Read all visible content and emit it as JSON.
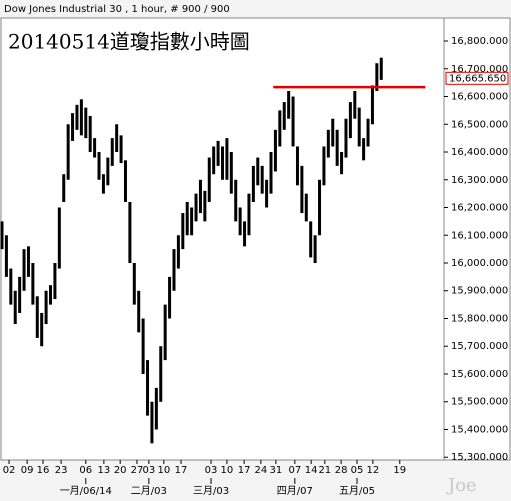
{
  "chart_data": {
    "type": "hlbar",
    "header": "Dow Jones Industrial 30 , 1 hour, # 900 / 900",
    "title": "20140514道瓊指數小時圖",
    "watermark": "Joe",
    "color": "#000000",
    "x": [
      0,
      1,
      2,
      3,
      4,
      5,
      6,
      7,
      8,
      9,
      10,
      11,
      12,
      13,
      14,
      15,
      16,
      17,
      18,
      19,
      20,
      21,
      22,
      23,
      24,
      25,
      26,
      27,
      28,
      29,
      30,
      31,
      32,
      33,
      34,
      35,
      36,
      37,
      38,
      39,
      40,
      41,
      42,
      43,
      44,
      45,
      46,
      47,
      48,
      49,
      50,
      51,
      52,
      53,
      54,
      55,
      56,
      57,
      58,
      59,
      60,
      61,
      62,
      63,
      64,
      65,
      66,
      67,
      68,
      69,
      70,
      71,
      72,
      73,
      74,
      75,
      76,
      77,
      78,
      79,
      80,
      81,
      82,
      83,
      84,
      85,
      86
    ],
    "high": [
      16150,
      16100,
      15980,
      15900,
      15950,
      16050,
      16060,
      16000,
      15880,
      15820,
      15900,
      15920,
      16000,
      16200,
      16320,
      16500,
      16540,
      16570,
      16590,
      16560,
      16530,
      16450,
      16400,
      16320,
      16380,
      16450,
      16500,
      16460,
      16370,
      16220,
      16000,
      15900,
      15800,
      15650,
      15500,
      15550,
      15700,
      15850,
      15950,
      16050,
      16100,
      16180,
      16220,
      16200,
      16250,
      16300,
      16260,
      16380,
      16420,
      16440,
      16420,
      16450,
      16400,
      16300,
      16200,
      16150,
      16250,
      16350,
      16380,
      16350,
      16300,
      16400,
      16480,
      16550,
      16580,
      16620,
      16600,
      16420,
      16350,
      16250,
      16150,
      16100,
      16300,
      16420,
      16480,
      16520,
      16480,
      16400,
      16520,
      16580,
      16620,
      16560,
      16450,
      16520,
      16640,
      16720,
      16740
    ],
    "low": [
      16050,
      15950,
      15850,
      15780,
      15820,
      15900,
      15950,
      15850,
      15730,
      15700,
      15780,
      15850,
      15870,
      15980,
      16220,
      16300,
      16440,
      16480,
      16460,
      16450,
      16400,
      16380,
      16300,
      16250,
      16280,
      16350,
      16400,
      16360,
      16220,
      16000,
      15850,
      15750,
      15600,
      15450,
      15350,
      15400,
      15500,
      15650,
      15800,
      15900,
      15980,
      16050,
      16100,
      16100,
      16150,
      16180,
      16150,
      16220,
      16320,
      16350,
      16300,
      16300,
      16250,
      16150,
      16100,
      16060,
      16100,
      16220,
      16280,
      16250,
      16200,
      16250,
      16330,
      16420,
      16480,
      16520,
      16420,
      16280,
      16180,
      16150,
      16020,
      16000,
      16100,
      16280,
      16380,
      16420,
      16350,
      16320,
      16380,
      16450,
      16520,
      16420,
      16370,
      16420,
      16500,
      16620,
      16660
    ],
    "xlim": [
      0,
      100
    ],
    "ylim": [
      15290,
      16883
    ],
    "xticks": [
      {
        "value": 1.6,
        "label": "02"
      },
      {
        "value": 5.7,
        "label": "09"
      },
      {
        "value": 9.3,
        "label": "16"
      },
      {
        "value": 13.4,
        "label": "23"
      },
      {
        "value": 19,
        "label": "06"
      },
      {
        "value": 23.1,
        "label": "13"
      },
      {
        "value": 26.8,
        "label": "20"
      },
      {
        "value": 30.6,
        "label": "27"
      },
      {
        "value": 33.3,
        "label": "03"
      },
      {
        "value": 36.7,
        "label": "10"
      },
      {
        "value": 40.6,
        "label": "17"
      },
      {
        "value": 47.4,
        "label": "03"
      },
      {
        "value": 51,
        "label": "10"
      },
      {
        "value": 54.9,
        "label": "17"
      },
      {
        "value": 58.7,
        "label": "24"
      },
      {
        "value": 62.1,
        "label": "31"
      },
      {
        "value": 66.4,
        "label": "07"
      },
      {
        "value": 70.1,
        "label": "14"
      },
      {
        "value": 73.2,
        "label": "21"
      },
      {
        "value": 76.9,
        "label": "28"
      },
      {
        "value": 80.5,
        "label": "05"
      },
      {
        "value": 84.1,
        "label": "12"
      },
      {
        "value": 90.2,
        "label": "19"
      }
    ],
    "month_ticks": [
      {
        "value": 19,
        "label": "一月/06/14"
      },
      {
        "value": 33.3,
        "label": "二月/03"
      },
      {
        "value": 47.4,
        "label": "三月/03"
      },
      {
        "value": 66.4,
        "label": "四月/07"
      },
      {
        "value": 80.5,
        "label": "五月/05"
      }
    ],
    "yticks": [
      {
        "value": 15300,
        "label": "15,300.000"
      },
      {
        "value": 15400,
        "label": "15,400.000"
      },
      {
        "value": 15500,
        "label": "15,500.000"
      },
      {
        "value": 15600,
        "label": "15,600.000"
      },
      {
        "value": 15700,
        "label": "15,700.000"
      },
      {
        "value": 15800,
        "label": "15,800.000"
      },
      {
        "value": 15900,
        "label": "15,900.000"
      },
      {
        "value": 16000,
        "label": "16,000.000"
      },
      {
        "value": 16100,
        "label": "16,100.000"
      },
      {
        "value": 16200,
        "label": "16,200.000"
      },
      {
        "value": 16300,
        "label": "16,300.000"
      },
      {
        "value": 16400,
        "label": "16,400.000"
      },
      {
        "value": 16500,
        "label": "16,500.000"
      },
      {
        "value": 16600,
        "label": "16,600.000"
      },
      {
        "value": 16700,
        "label": "16,700.000"
      },
      {
        "value": 16800,
        "label": "16,800.000"
      }
    ],
    "last_price": {
      "value": 16665.65,
      "label": "16,665.650",
      "color": "#e00000"
    },
    "hline": {
      "value": 16634,
      "from": 61.5,
      "to": 96,
      "color": "#e00000"
    }
  }
}
